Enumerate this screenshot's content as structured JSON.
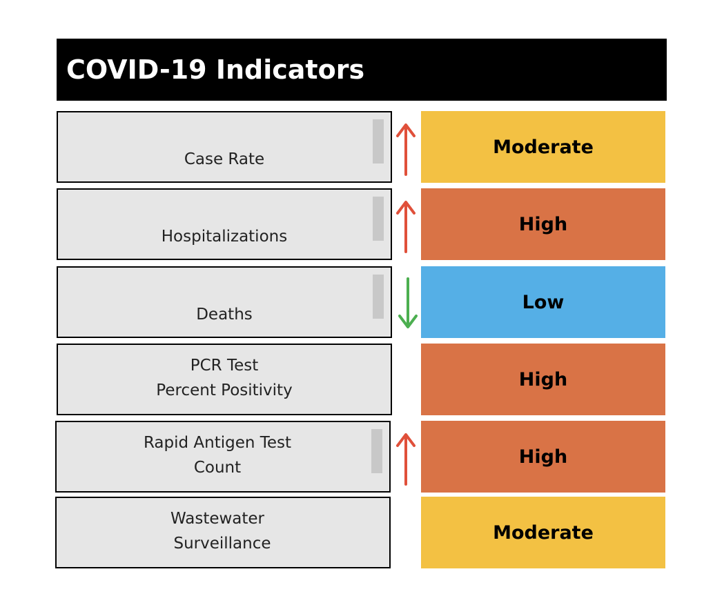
{
  "header": {
    "title": "COVID-19 Indicators"
  },
  "colors": {
    "moderate": "#f3c143",
    "high": "#d97346",
    "low": "#55afe6",
    "arrow_up": "#e0503a",
    "arrow_down": "#4caf50"
  },
  "indicators": [
    {
      "lines": [
        "Case Rate"
      ],
      "trend": "up",
      "trend_icon": "arrow-up-icon",
      "level": "Moderate",
      "level_color": "#f3c143"
    },
    {
      "lines": [
        "Hospitalizations"
      ],
      "trend": "up",
      "trend_icon": "arrow-up-icon",
      "level": "High",
      "level_color": "#d97346"
    },
    {
      "lines": [
        "Deaths"
      ],
      "trend": "down",
      "trend_icon": "arrow-down-icon",
      "level": "Low",
      "level_color": "#55afe6"
    },
    {
      "lines": [
        "PCR Test",
        "Percent Positivity"
      ],
      "trend": "none",
      "trend_icon": "",
      "level": "High",
      "level_color": "#d97346"
    },
    {
      "lines": [
        "Rapid Antigen Test",
        "Count"
      ],
      "trend": "up",
      "trend_icon": "arrow-up-icon",
      "level": "High",
      "level_color": "#d97346"
    },
    {
      "lines": [
        "Wastewater",
        " Surveillance"
      ],
      "trend": "none",
      "trend_icon": "",
      "level": "Moderate",
      "level_color": "#f3c143"
    }
  ]
}
